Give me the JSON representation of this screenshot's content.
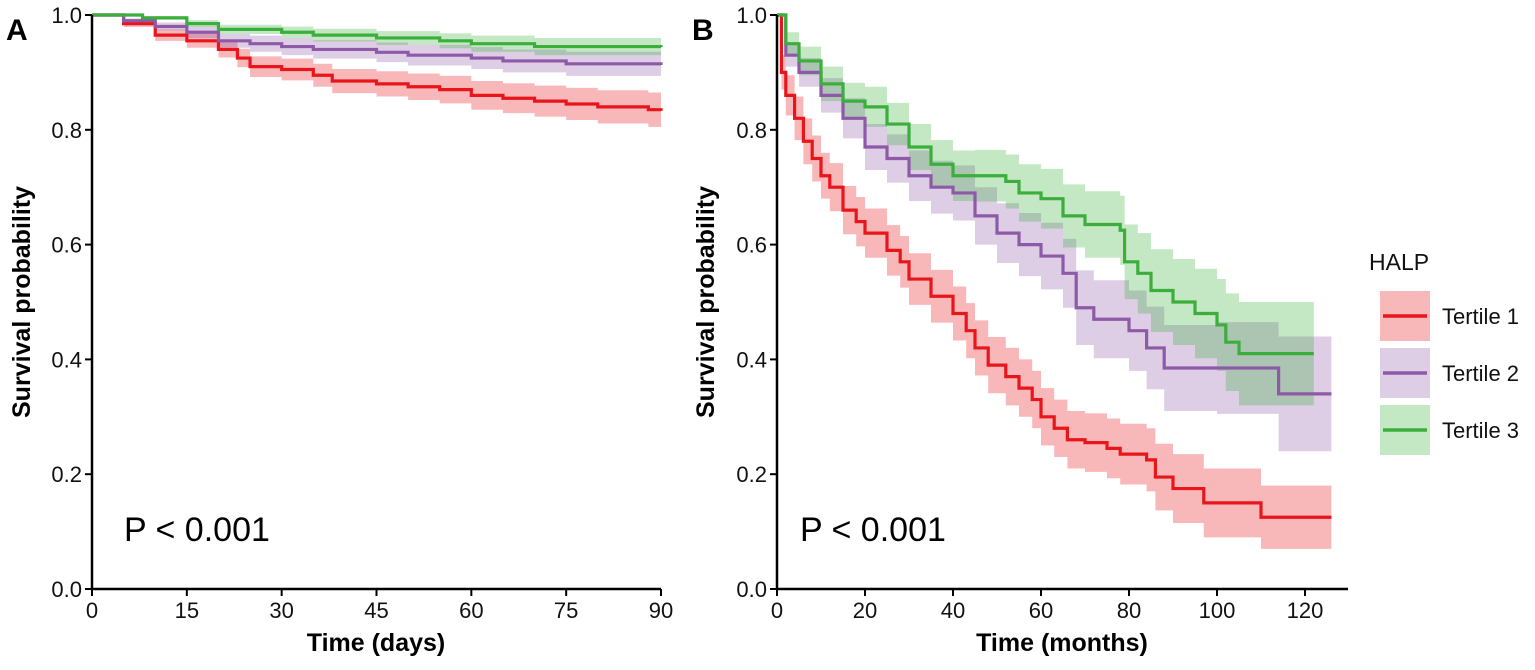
{
  "chart_data": [
    {
      "type": "line",
      "subtype": "kaplan-meier",
      "panel_label": "A",
      "xlabel": "Time (days)",
      "ylabel": "Survival probability",
      "xlim": [
        0,
        90
      ],
      "ylim": [
        0,
        1
      ],
      "xticks": [
        0,
        15,
        30,
        45,
        60,
        75,
        90
      ],
      "xtick_labels": [
        "0",
        "15",
        "30",
        "45",
        "60",
        "75",
        "90"
      ],
      "yticks": [
        0,
        0.2,
        0.4,
        0.6,
        0.8,
        1.0
      ],
      "ytick_labels": [
        "0.0",
        "0.2",
        "0.4",
        "0.6",
        "0.8",
        "1.0"
      ],
      "annotation": "P < 0.001",
      "grid": false,
      "series": [
        {
          "name": "Tertile 1",
          "color": "#e8151b",
          "x": [
            0,
            5,
            10,
            15,
            20,
            23,
            25,
            30,
            35,
            38,
            45,
            50,
            55,
            60,
            65,
            70,
            75,
            80,
            88,
            90
          ],
          "y": [
            1.0,
            0.985,
            0.965,
            0.955,
            0.94,
            0.925,
            0.91,
            0.905,
            0.895,
            0.885,
            0.88,
            0.875,
            0.87,
            0.86,
            0.855,
            0.85,
            0.845,
            0.84,
            0.835,
            0.833
          ],
          "ci_halfwidth": [
            0,
            0.006,
            0.01,
            0.012,
            0.014,
            0.016,
            0.018,
            0.019,
            0.02,
            0.021,
            0.022,
            0.023,
            0.024,
            0.025,
            0.026,
            0.027,
            0.028,
            0.029,
            0.03,
            0.03
          ]
        },
        {
          "name": "Tertile 2",
          "color": "#8e5aa8",
          "x": [
            0,
            5,
            10,
            15,
            20,
            25,
            30,
            35,
            45,
            50,
            60,
            65,
            75,
            90
          ],
          "y": [
            1.0,
            0.99,
            0.98,
            0.97,
            0.955,
            0.95,
            0.945,
            0.94,
            0.935,
            0.93,
            0.925,
            0.92,
            0.915,
            0.913
          ],
          "ci_halfwidth": [
            0,
            0.004,
            0.007,
            0.01,
            0.012,
            0.014,
            0.015,
            0.016,
            0.017,
            0.018,
            0.019,
            0.02,
            0.021,
            0.022
          ]
        },
        {
          "name": "Tertile 3",
          "color": "#3bae3c",
          "x": [
            0,
            8,
            15,
            20,
            30,
            35,
            45,
            55,
            60,
            70,
            90
          ],
          "y": [
            1.0,
            0.995,
            0.985,
            0.975,
            0.97,
            0.965,
            0.96,
            0.955,
            0.95,
            0.945,
            0.944
          ],
          "ci_halfwidth": [
            0,
            0.003,
            0.006,
            0.008,
            0.01,
            0.011,
            0.012,
            0.013,
            0.014,
            0.015,
            0.016
          ]
        }
      ]
    },
    {
      "type": "line",
      "subtype": "kaplan-meier",
      "panel_label": "B",
      "xlabel": "Time (months)",
      "ylabel": "Survival probability",
      "xlim": [
        0,
        130
      ],
      "ylim": [
        0,
        1
      ],
      "xticks": [
        0,
        20,
        40,
        60,
        80,
        100,
        120
      ],
      "xtick_labels": [
        "0",
        "20",
        "40",
        "60",
        "80",
        "100",
        "120"
      ],
      "yticks": [
        0,
        0.2,
        0.4,
        0.6,
        0.8,
        1.0
      ],
      "ytick_labels": [
        "0.0",
        "0.2",
        "0.4",
        "0.6",
        "0.8",
        "1.0"
      ],
      "annotation": "P < 0.001",
      "grid": false,
      "legend": {
        "title": "HALP",
        "placement": "right",
        "entries": [
          "Tertile 1",
          "Tertile 2",
          "Tertile 3"
        ]
      },
      "series": [
        {
          "name": "Tertile 1",
          "color": "#e8151b",
          "x": [
            0,
            1,
            2,
            4,
            6,
            8,
            10,
            12,
            15,
            18,
            20,
            25,
            28,
            30,
            35,
            40,
            43,
            45,
            48,
            52,
            55,
            58,
            60,
            63,
            66,
            70,
            75,
            78,
            84,
            86,
            90,
            97,
            110,
            126
          ],
          "y": [
            1.0,
            0.9,
            0.86,
            0.82,
            0.78,
            0.75,
            0.72,
            0.7,
            0.66,
            0.64,
            0.62,
            0.59,
            0.57,
            0.54,
            0.51,
            0.48,
            0.45,
            0.42,
            0.39,
            0.37,
            0.35,
            0.33,
            0.3,
            0.28,
            0.26,
            0.255,
            0.245,
            0.235,
            0.225,
            0.195,
            0.175,
            0.15,
            0.125,
            0.125
          ],
          "ci_halfwidth": [
            0,
            0.03,
            0.035,
            0.038,
            0.04,
            0.04,
            0.04,
            0.042,
            0.042,
            0.043,
            0.043,
            0.044,
            0.045,
            0.045,
            0.046,
            0.047,
            0.048,
            0.048,
            0.049,
            0.05,
            0.05,
            0.05,
            0.05,
            0.05,
            0.05,
            0.051,
            0.052,
            0.053,
            0.055,
            0.058,
            0.06,
            0.06,
            0.055,
            0.055
          ]
        },
        {
          "name": "Tertile 2",
          "color": "#8e5aa8",
          "x": [
            0,
            2,
            5,
            10,
            15,
            20,
            25,
            30,
            35,
            40,
            45,
            50,
            55,
            60,
            65,
            68,
            72,
            80,
            84,
            88,
            100,
            114,
            126
          ],
          "y": [
            1.0,
            0.93,
            0.9,
            0.86,
            0.82,
            0.77,
            0.75,
            0.72,
            0.7,
            0.69,
            0.65,
            0.62,
            0.6,
            0.58,
            0.55,
            0.49,
            0.47,
            0.45,
            0.42,
            0.385,
            0.385,
            0.34,
            0.34
          ],
          "ci_halfwidth": [
            0,
            0.02,
            0.025,
            0.03,
            0.035,
            0.04,
            0.042,
            0.044,
            0.046,
            0.048,
            0.05,
            0.052,
            0.055,
            0.058,
            0.06,
            0.065,
            0.068,
            0.07,
            0.072,
            0.075,
            0.08,
            0.1,
            0.11
          ]
        },
        {
          "name": "Tertile 3",
          "color": "#3bae3c",
          "x": [
            0,
            2,
            5,
            10,
            15,
            20,
            25,
            30,
            35,
            40,
            45,
            52,
            55,
            60,
            65,
            70,
            78,
            79,
            82,
            85,
            90,
            95,
            100,
            102,
            105,
            122
          ],
          "y": [
            1.0,
            0.95,
            0.92,
            0.88,
            0.85,
            0.84,
            0.81,
            0.77,
            0.74,
            0.72,
            0.72,
            0.71,
            0.69,
            0.68,
            0.65,
            0.635,
            0.625,
            0.57,
            0.55,
            0.52,
            0.5,
            0.48,
            0.46,
            0.43,
            0.41,
            0.41
          ],
          "ci_halfwidth": [
            0,
            0.02,
            0.025,
            0.03,
            0.032,
            0.035,
            0.037,
            0.04,
            0.042,
            0.044,
            0.045,
            0.047,
            0.05,
            0.052,
            0.055,
            0.058,
            0.06,
            0.065,
            0.07,
            0.072,
            0.075,
            0.078,
            0.08,
            0.085,
            0.09,
            0.09
          ]
        }
      ]
    }
  ]
}
